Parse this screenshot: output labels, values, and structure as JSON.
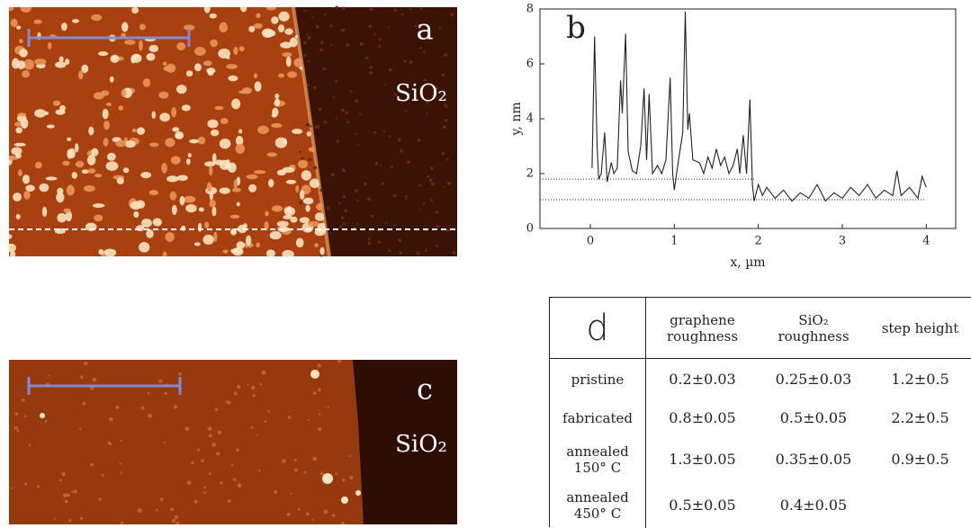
{
  "panels": {
    "a": {
      "label": "a",
      "annotation": "SiO₂"
    },
    "c": {
      "label": "c",
      "annotation": "SiO₂"
    }
  },
  "chart_data": {
    "type": "line",
    "panel_label": "b",
    "xlabel": "x, µm",
    "ylabel": "y, nm",
    "color": "#222222",
    "xlim": [
      -0.6,
      4.35
    ],
    "ylim": [
      0,
      8
    ],
    "xticks": [
      0,
      1,
      2,
      3,
      4
    ],
    "yticks": [
      0,
      2,
      4,
      6,
      8
    ],
    "hlines": [
      {
        "y": 1.8,
        "x_end": 1.95
      },
      {
        "y": 1.05,
        "x_end": 4
      }
    ],
    "x": [
      0.02,
      0.05,
      0.08,
      0.1,
      0.13,
      0.17,
      0.2,
      0.25,
      0.28,
      0.32,
      0.36,
      0.38,
      0.42,
      0.45,
      0.5,
      0.55,
      0.6,
      0.64,
      0.67,
      0.7,
      0.74,
      0.8,
      0.85,
      0.9,
      0.95,
      0.98,
      1.0,
      1.05,
      1.1,
      1.13,
      1.16,
      1.18,
      1.22,
      1.3,
      1.35,
      1.4,
      1.45,
      1.5,
      1.55,
      1.6,
      1.65,
      1.7,
      1.75,
      1.78,
      1.82,
      1.86,
      1.9,
      1.93,
      1.95,
      2.0,
      2.05,
      2.1,
      2.2,
      2.3,
      2.4,
      2.5,
      2.6,
      2.7,
      2.8,
      2.9,
      3.0,
      3.1,
      3.2,
      3.3,
      3.4,
      3.5,
      3.6,
      3.65,
      3.7,
      3.8,
      3.9,
      3.95,
      4.0
    ],
    "values": [
      2.2,
      7.0,
      3.0,
      1.8,
      2.0,
      3.5,
      1.7,
      2.4,
      2.0,
      2.2,
      5.4,
      4.2,
      7.1,
      2.8,
      2.1,
      2.0,
      3.0,
      5.1,
      2.5,
      4.9,
      2.0,
      2.3,
      2.0,
      2.5,
      5.5,
      2.0,
      1.4,
      2.5,
      3.5,
      7.9,
      3.6,
      4.2,
      2.5,
      2.4,
      2.0,
      2.6,
      2.2,
      2.9,
      2.3,
      2.6,
      2.0,
      2.3,
      2.9,
      2.0,
      3.4,
      2.0,
      4.7,
      1.6,
      1.0,
      1.6,
      1.2,
      1.5,
      1.1,
      1.4,
      1.0,
      1.3,
      1.1,
      1.6,
      1.0,
      1.3,
      1.1,
      1.5,
      1.2,
      1.6,
      1.1,
      1.4,
      1.2,
      2.1,
      1.2,
      1.5,
      1.1,
      1.9,
      1.5
    ]
  },
  "table": {
    "header": [
      "d",
      "graphene roughness",
      "SiO₂ roughness",
      "step height"
    ],
    "rows": [
      [
        "pristine",
        "0.2±0.03",
        "0.25±0.03",
        "1.2±0.5"
      ],
      [
        "fabricated",
        "0.8±0.05",
        "0.5±0.05",
        "2.2±0.5"
      ],
      [
        "annealed 150° C",
        "1.3±0.05",
        "0.35±0.05",
        "0.9±0.5"
      ],
      [
        "annealed 450° C",
        "0.5±0.05",
        "0.4±0.05"
      ]
    ]
  }
}
